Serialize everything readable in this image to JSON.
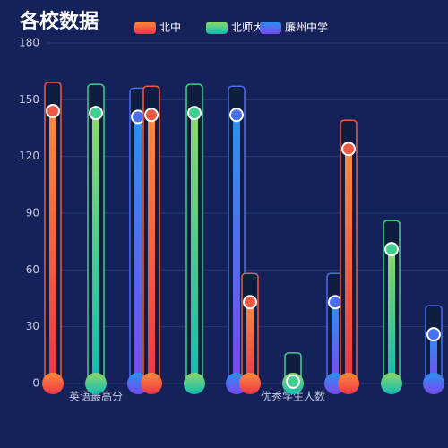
{
  "chart_data": {
    "type": "bar",
    "title": "各校数据",
    "categories": [
      "英语最高分",
      null,
      "优秀学生人数",
      null
    ],
    "series": [
      {
        "name": "北中",
        "color": "#f05a44",
        "gradient": [
          "#f98c3c",
          "#ee3548"
        ],
        "values": [
          144,
          142,
          43,
          124
        ]
      },
      {
        "name": "北师大",
        "color": "#3fcf8e",
        "gradient": [
          "#90d86a",
          "#10bcb2"
        ],
        "values": [
          143,
          143,
          1,
          71
        ]
      },
      {
        "name": "廉州中学",
        "color": "#4a6ef2",
        "gradient": [
          "#2a92ee",
          "#7a48f0"
        ],
        "values": [
          141,
          142,
          43,
          26
        ]
      }
    ],
    "ylim": [
      0,
      180
    ],
    "yticks": [
      0,
      30,
      60,
      90,
      120,
      150,
      180
    ],
    "grid": true
  }
}
